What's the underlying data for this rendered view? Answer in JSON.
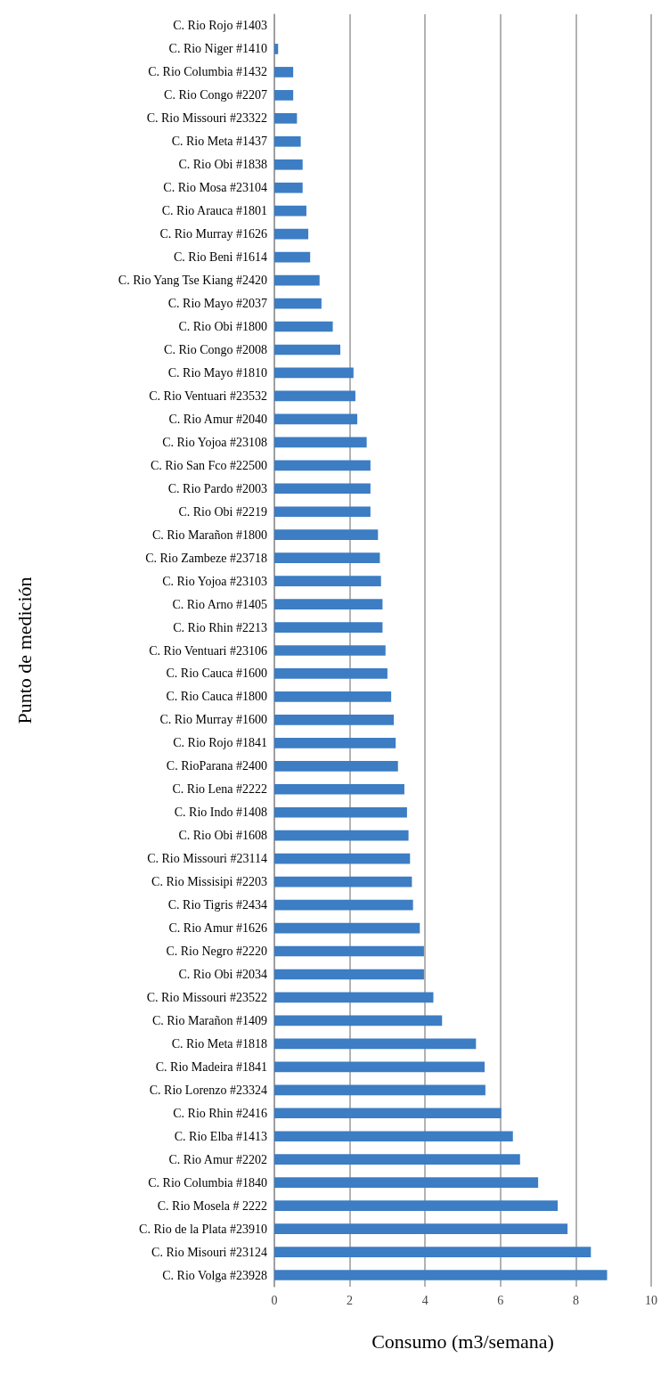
{
  "chart_data": {
    "type": "bar",
    "orientation": "horizontal",
    "xlabel": "Consumo (m3/semana)",
    "ylabel": "Punto de medición",
    "categories": [
      "C. Rio Rojo #1403",
      "C. Rio Niger #1410",
      "C. Rio Columbia #1432",
      "C. Rio Congo #2207",
      "C. Rio Missouri #23322",
      "C. Rio Meta #1437",
      "C. Rio Obi #1838",
      "C. Rio Mosa #23104",
      "C. Rio Arauca #1801",
      "C. Rio Murray #1626",
      "C. Rio Beni #1614",
      "C. Rio Yang Tse Kiang #2420",
      "C. Rio Mayo #2037",
      "C. Rio Obi #1800",
      "C. Rio Congo #2008",
      "C. Rio Mayo #1810",
      "C. Rio Ventuari #23532",
      "C. Rio Amur #2040",
      "C. Rio Yojoa #23108",
      "C. Rio San Fco #22500",
      "C. Rio Pardo #2003",
      "C. Rio Obi #2219",
      "C. Rio Marañon #1800",
      "C. Rio Zambeze #23718",
      "C. Rio Yojoa #23103",
      "C. Rio Arno #1405",
      "C. Rio Rhin #2213",
      "C. Rio Ventuari #23106",
      "C. Rio Cauca #1600",
      "C. Rio Cauca #1800",
      "C. Rio Murray #1600",
      "C. Rio Rojo #1841",
      "C. RioParana #2400",
      "C. Rio Lena #2222",
      "C. Rio Indo #1408",
      "C. Rio Obi #1608",
      "C. Rio Missouri #23114",
      "C. Rio Missisipi #2203",
      "C. Rio Tigris #2434",
      "C. Rio Amur #1626",
      "C. Rio Negro #2220",
      "C. Rio Obi #2034",
      "C. Rio Missouri #23522",
      "C. Rio Marañon #1409",
      "C. Rio Meta #1818",
      "C. Rio Madeira #1841",
      "C. Rio Lorenzo #23324",
      "C. Rio Rhin #2416",
      "C. Rio Elba #1413",
      "C. Rio Amur #2202",
      "C. Rio Columbia #1840",
      "C. Rio Mosela # 2222",
      "C. Rio de la Plata #23910",
      "C. Rio Misouri #23124",
      "C. Rio Volga #23928"
    ],
    "values": [
      0,
      0.1,
      0.5,
      0.5,
      0.6,
      0.7,
      0.75,
      0.75,
      0.85,
      0.9,
      0.95,
      1.2,
      1.25,
      1.55,
      1.75,
      2.1,
      2.15,
      2.2,
      2.45,
      2.55,
      2.55,
      2.55,
      2.75,
      2.8,
      2.83,
      2.87,
      2.87,
      2.95,
      3.0,
      3.1,
      3.17,
      3.22,
      3.28,
      3.45,
      3.52,
      3.56,
      3.6,
      3.65,
      3.68,
      3.86,
      3.97,
      3.97,
      4.22,
      4.45,
      5.35,
      5.58,
      5.6,
      6.02,
      6.33,
      6.52,
      7.0,
      7.52,
      7.78,
      8.4,
      8.83
    ],
    "color": "#3c7dc4",
    "xlim": [
      0,
      10
    ],
    "xticks": [
      0,
      2,
      4,
      6,
      8,
      10
    ],
    "grid": "x"
  }
}
